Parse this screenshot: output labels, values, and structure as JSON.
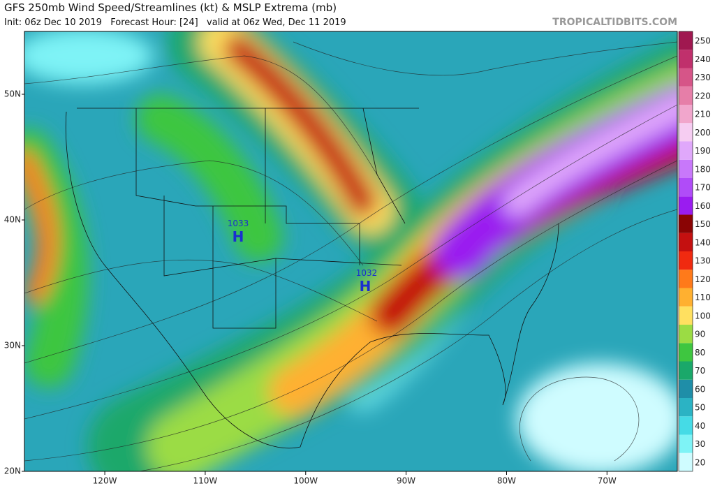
{
  "header": {
    "title": "GFS 250mb Wind Speed/Streamlines (kt) & MSLP Extrema (mb)",
    "subtitle": "Init: 06z Dec 10 2019   Forecast Hour: [24]   valid at 06z Wed, Dec 11 2019",
    "watermark": "TROPICALTIDBITS.COM"
  },
  "map": {
    "xlim": [
      -128,
      -63
    ],
    "ylim": [
      20,
      55
    ],
    "xticks": [
      {
        "value": -120,
        "label": "120W"
      },
      {
        "value": -110,
        "label": "110W"
      },
      {
        "value": -100,
        "label": "100W"
      },
      {
        "value": -90,
        "label": "90W"
      },
      {
        "value": -80,
        "label": "80W"
      },
      {
        "value": -70,
        "label": "70W"
      }
    ],
    "yticks": [
      {
        "value": 20,
        "label": "20N"
      },
      {
        "value": 30,
        "label": "30N"
      },
      {
        "value": 40,
        "label": "40N"
      },
      {
        "value": 50,
        "label": "50N"
      }
    ],
    "highs": [
      {
        "symbol": "H",
        "pressure": "1033"
      },
      {
        "symbol": "H",
        "pressure": "1032"
      }
    ]
  },
  "colorbar": {
    "range": [
      20,
      260
    ],
    "ticks": [
      20,
      30,
      40,
      50,
      60,
      70,
      80,
      90,
      100,
      110,
      120,
      130,
      140,
      150,
      160,
      170,
      180,
      190,
      200,
      210,
      220,
      230,
      240,
      250
    ],
    "colors": [
      "#cffcff",
      "#7ef3f6",
      "#45dbe6",
      "#2bb3c4",
      "#1f8ea8",
      "#1aa86a",
      "#3ec640",
      "#9bdc44",
      "#ffe060",
      "#ffb030",
      "#ff7a1a",
      "#f02a10",
      "#c41010",
      "#8a0404",
      "#9a1cf0",
      "#b04cf8",
      "#c878fa",
      "#e0a8fb",
      "#f6cdf2",
      "#f1a6cc",
      "#e67ea8",
      "#d65588",
      "#c0306c",
      "#a01850"
    ]
  }
}
